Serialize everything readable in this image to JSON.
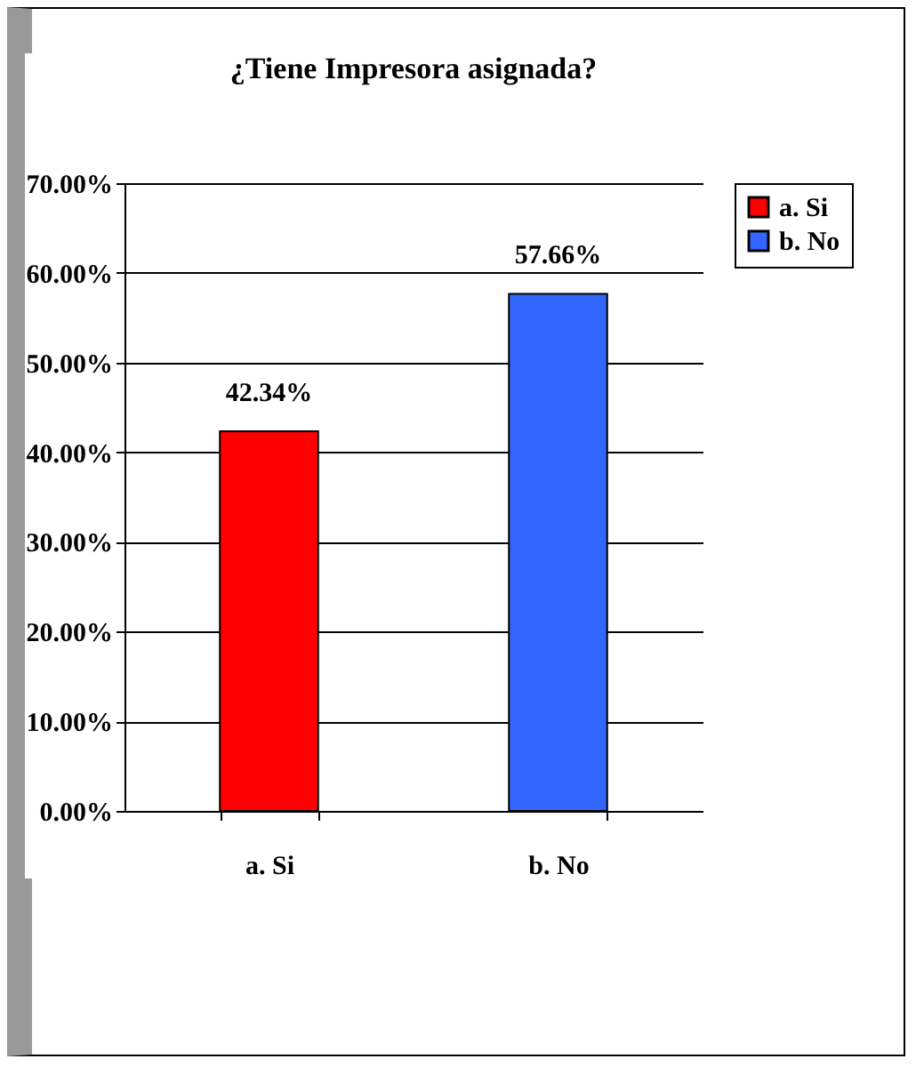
{
  "chart_data": {
    "type": "bar",
    "title": "¿Tiene  Impresora asignada?",
    "categories": [
      "a. Si",
      "b. No"
    ],
    "series": [
      {
        "name": "a. Si",
        "color": "#ff0000",
        "values": [
          42.34,
          null
        ],
        "value_labels": [
          "42.34%",
          null
        ]
      },
      {
        "name": "b. No",
        "color": "#3366ff",
        "values": [
          null,
          57.66
        ],
        "value_labels": [
          null,
          "57.66%"
        ]
      }
    ],
    "stacked": true,
    "ylim": [
      0,
      70
    ],
    "yticks": [
      {
        "value": 0,
        "label": "0.00%"
      },
      {
        "value": 10,
        "label": "10.00%"
      },
      {
        "value": 20,
        "label": "20.00%"
      },
      {
        "value": 30,
        "label": "30.00%"
      },
      {
        "value": 40,
        "label": "40.00%"
      },
      {
        "value": 50,
        "label": "50.00%"
      },
      {
        "value": 60,
        "label": "60.00%"
      },
      {
        "value": 70,
        "label": "70.00%"
      }
    ],
    "grid": "y",
    "legend": "right"
  }
}
